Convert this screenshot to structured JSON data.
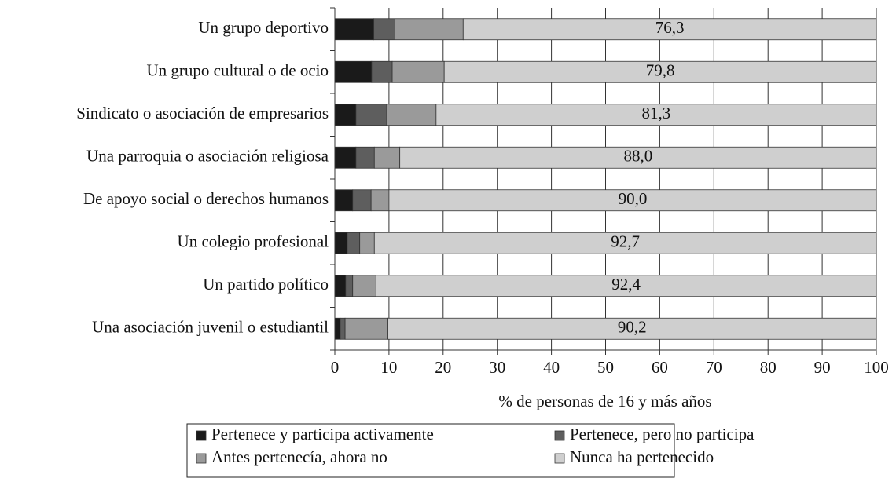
{
  "chart_data": {
    "type": "stacked_barh",
    "xlabel": "% de personas de 16 y más años",
    "categories": [
      "Un grupo deportivo",
      "Un grupo cultural o de ocio",
      "Sindicato o asociación de empresarios",
      "Una parroquia o asociación religiosa",
      "De apoyo social o derechos humanos",
      "Un colegio profesional",
      "Un partido político",
      "Una asociación juvenil o estudiantil"
    ],
    "series": [
      {
        "name": "Pertenece y participa activamente",
        "color": "#1a1a1a",
        "values": [
          7.2,
          6.8,
          3.9,
          3.9,
          3.3,
          2.3,
          2.0,
          1.0
        ]
      },
      {
        "name": "Pertenece, pero no participa",
        "color": "#5e5e5e",
        "values": [
          3.9,
          3.8,
          5.7,
          3.4,
          3.4,
          2.3,
          1.3,
          0.9
        ]
      },
      {
        "name": "Antes pertenecía, ahora no",
        "color": "#9a9a9a",
        "values": [
          12.6,
          9.6,
          9.1,
          4.7,
          3.3,
          2.7,
          4.3,
          7.9
        ]
      },
      {
        "name": "Nunca ha pertenecido",
        "color": "#cfcfcf",
        "values": [
          76.3,
          79.8,
          81.3,
          88.0,
          90.0,
          92.7,
          92.4,
          90.2
        ],
        "value_labels": [
          "76,3",
          "79,8",
          "81,3",
          "88,0",
          "90,0",
          "92,7",
          "92,4",
          "90,2"
        ]
      }
    ],
    "xlim": [
      0,
      100
    ],
    "xticks": [
      0,
      10,
      20,
      30,
      40,
      50,
      60,
      70,
      80,
      90,
      100
    ],
    "grid": true,
    "legend": "bottom"
  }
}
